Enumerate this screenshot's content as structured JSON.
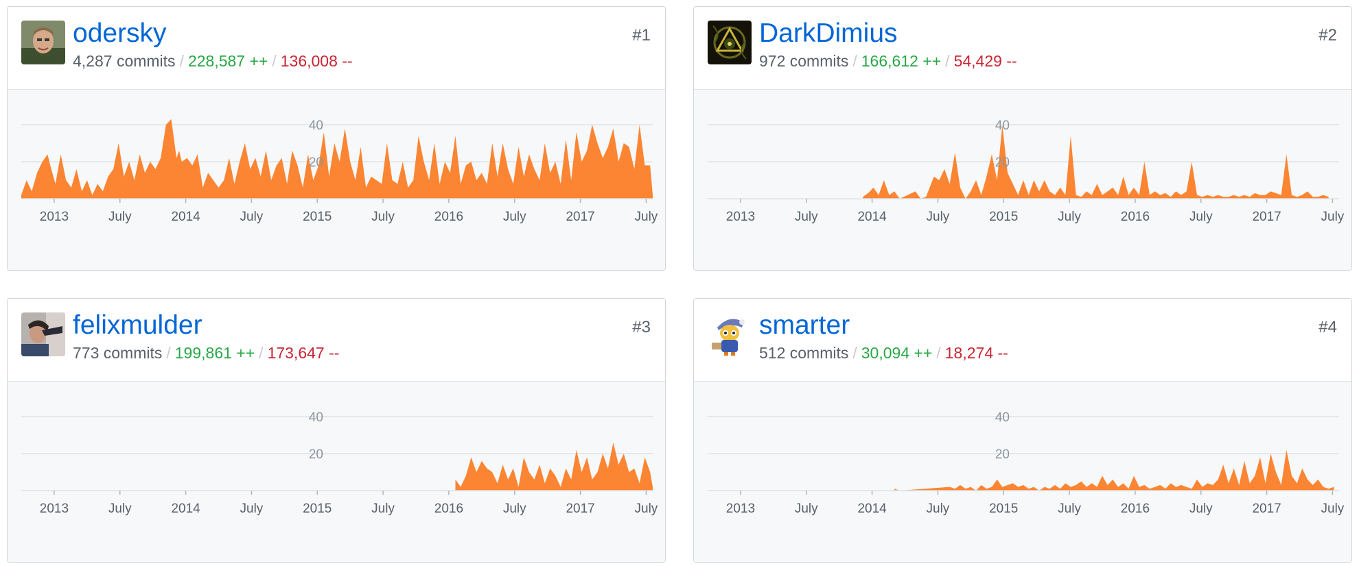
{
  "cards": [
    {
      "rank": "#1",
      "username": "odersky",
      "commits": "4,287 commits",
      "additions": "228,587 ++",
      "deletions": "136,008 --",
      "avatar_icon": "avatar-photo-odersky"
    },
    {
      "rank": "#2",
      "username": "DarkDimius",
      "commits": "972 commits",
      "additions": "166,612 ++",
      "deletions": "54,429 --",
      "avatar_icon": "avatar-fractal-darkdimius"
    },
    {
      "rank": "#3",
      "username": "felixmulder",
      "commits": "773 commits",
      "additions": "199,861 ++",
      "deletions": "173,647 --",
      "avatar_icon": "avatar-photo-felixmulder"
    },
    {
      "rank": "#4",
      "username": "smarter",
      "commits": "512 commits",
      "additions": "30,094 ++",
      "deletions": "18,274 --",
      "avatar_icon": "avatar-cartoon-smarter"
    }
  ],
  "colors": {
    "area": "#fb8532",
    "link": "#0366d6",
    "additions": "#28a745",
    "deletions": "#cb2431"
  },
  "chart_data": [
    {
      "type": "area",
      "x_unit": "week",
      "x_range": [
        "2012-10",
        "2017-07"
      ],
      "ylim": [
        0,
        44
      ],
      "yticks": [
        20,
        40
      ],
      "xticks": [
        {
          "x": 0.25,
          "label": "2013"
        },
        {
          "x": 0.75,
          "label": "July"
        },
        {
          "x": 1.25,
          "label": "2014"
        },
        {
          "x": 1.75,
          "label": "July"
        },
        {
          "x": 2.25,
          "label": "2015"
        },
        {
          "x": 2.75,
          "label": "July"
        },
        {
          "x": 3.25,
          "label": "2016"
        },
        {
          "x": 3.75,
          "label": "July"
        },
        {
          "x": 4.25,
          "label": "2017"
        },
        {
          "x": 4.75,
          "label": "July"
        }
      ],
      "grid": true,
      "series": [
        {
          "x": [
            0.0,
            0.04,
            0.08,
            0.12,
            0.16,
            0.2,
            0.22,
            0.26,
            0.3,
            0.34,
            0.38,
            0.42,
            0.46,
            0.5,
            0.54,
            0.58,
            0.62,
            0.66,
            0.7,
            0.74,
            0.78,
            0.82,
            0.86,
            0.9,
            0.94,
            0.98,
            1.02,
            1.06,
            1.1,
            1.14,
            1.18,
            1.2,
            1.22,
            1.26,
            1.3,
            1.34,
            1.38,
            1.42,
            1.46,
            1.5,
            1.54,
            1.58,
            1.62,
            1.66,
            1.7,
            1.74,
            1.78,
            1.82,
            1.86,
            1.9,
            1.94,
            1.98,
            2.02,
            2.06,
            2.1,
            2.14,
            2.18,
            2.22,
            2.26,
            2.3,
            2.34,
            2.38,
            2.42,
            2.46,
            2.5,
            2.54,
            2.58,
            2.62,
            2.66,
            2.7,
            2.74,
            2.78,
            2.82,
            2.86,
            2.9,
            2.94,
            2.98,
            3.02,
            3.06,
            3.1,
            3.14,
            3.18,
            3.22,
            3.26,
            3.3,
            3.34,
            3.38,
            3.42,
            3.46,
            3.5,
            3.54,
            3.58,
            3.62,
            3.66,
            3.7,
            3.74,
            3.78,
            3.82,
            3.86,
            3.9,
            3.94,
            3.98,
            4.02,
            4.06,
            4.1,
            4.14,
            4.18,
            4.22,
            4.26,
            4.3,
            4.34,
            4.38,
            4.42,
            4.46,
            4.5,
            4.54,
            4.58,
            4.62,
            4.66,
            4.7,
            4.74,
            4.78,
            4.8
          ],
          "y": [
            2,
            10,
            4,
            14,
            20,
            24,
            18,
            8,
            24,
            10,
            6,
            16,
            4,
            10,
            2,
            8,
            4,
            12,
            16,
            30,
            12,
            20,
            10,
            24,
            14,
            20,
            16,
            22,
            40,
            43,
            22,
            26,
            20,
            22,
            18,
            24,
            6,
            14,
            10,
            6,
            10,
            22,
            8,
            20,
            30,
            16,
            22,
            12,
            26,
            10,
            18,
            22,
            8,
            26,
            18,
            6,
            24,
            10,
            18,
            36,
            12,
            30,
            20,
            38,
            20,
            10,
            28,
            6,
            12,
            10,
            8,
            30,
            10,
            8,
            20,
            6,
            10,
            34,
            20,
            10,
            30,
            8,
            20,
            14,
            34,
            8,
            18,
            20,
            10,
            14,
            8,
            30,
            12,
            30,
            16,
            8,
            28,
            12,
            24,
            16,
            10,
            30,
            14,
            20,
            8,
            32,
            10,
            36,
            20,
            26,
            40,
            30,
            22,
            28,
            38,
            20,
            30,
            28,
            16,
            40,
            18,
            18,
            2
          ]
        }
      ]
    },
    {
      "type": "area",
      "x_unit": "week",
      "x_range": [
        "2012-10",
        "2017-07"
      ],
      "ylim": [
        0,
        44
      ],
      "yticks": [
        20,
        40
      ],
      "xticks": [
        {
          "x": 0.25,
          "label": "2013"
        },
        {
          "x": 0.75,
          "label": "July"
        },
        {
          "x": 1.25,
          "label": "2014"
        },
        {
          "x": 1.75,
          "label": "July"
        },
        {
          "x": 2.25,
          "label": "2015"
        },
        {
          "x": 2.75,
          "label": "July"
        },
        {
          "x": 3.25,
          "label": "2016"
        },
        {
          "x": 3.75,
          "label": "July"
        },
        {
          "x": 4.25,
          "label": "2017"
        },
        {
          "x": 4.75,
          "label": "July"
        }
      ],
      "grid": true,
      "series": [
        {
          "x": [
            1.18,
            1.22,
            1.26,
            1.3,
            1.34,
            1.38,
            1.42,
            1.46,
            1.58,
            1.62,
            1.66,
            1.72,
            1.76,
            1.8,
            1.84,
            1.88,
            1.92,
            1.96,
            2.0,
            2.04,
            2.08,
            2.12,
            2.16,
            2.2,
            2.24,
            2.28,
            2.32,
            2.36,
            2.4,
            2.44,
            2.48,
            2.52,
            2.56,
            2.6,
            2.64,
            2.68,
            2.72,
            2.76,
            2.8,
            2.84,
            2.88,
            2.92,
            2.96,
            3.0,
            3.04,
            3.08,
            3.12,
            3.16,
            3.2,
            3.24,
            3.28,
            3.32,
            3.36,
            3.4,
            3.44,
            3.48,
            3.52,
            3.56,
            3.6,
            3.64,
            3.68,
            3.72,
            3.76,
            3.8,
            3.84,
            3.88,
            3.92,
            3.96,
            4.0,
            4.04,
            4.08,
            4.12,
            4.16,
            4.2,
            4.24,
            4.28,
            4.32,
            4.36,
            4.4,
            4.44,
            4.48,
            4.52,
            4.56,
            4.6,
            4.64,
            4.68,
            4.72
          ],
          "y": [
            1,
            3,
            6,
            2,
            10,
            2,
            4,
            0,
            4,
            0,
            1,
            12,
            10,
            16,
            8,
            25,
            6,
            0,
            4,
            10,
            2,
            12,
            24,
            10,
            40,
            14,
            8,
            2,
            10,
            2,
            10,
            4,
            10,
            4,
            2,
            6,
            2,
            34,
            2,
            1,
            4,
            2,
            8,
            2,
            4,
            6,
            2,
            12,
            2,
            6,
            2,
            20,
            2,
            4,
            2,
            3,
            1,
            4,
            2,
            4,
            20,
            2,
            1,
            2,
            1,
            2,
            1,
            1,
            2,
            1,
            2,
            1,
            3,
            2,
            2,
            4,
            3,
            2,
            24,
            2,
            1,
            2,
            4,
            1,
            1,
            2,
            1
          ]
        }
      ]
    },
    {
      "type": "area",
      "x_unit": "week",
      "x_range": [
        "2012-10",
        "2017-07"
      ],
      "ylim": [
        0,
        44
      ],
      "yticks": [
        20,
        40
      ],
      "xticks": [
        {
          "x": 0.25,
          "label": "2013"
        },
        {
          "x": 0.75,
          "label": "July"
        },
        {
          "x": 1.25,
          "label": "2014"
        },
        {
          "x": 1.75,
          "label": "July"
        },
        {
          "x": 2.25,
          "label": "2015"
        },
        {
          "x": 2.75,
          "label": "July"
        },
        {
          "x": 3.25,
          "label": "2016"
        },
        {
          "x": 3.75,
          "label": "July"
        },
        {
          "x": 4.25,
          "label": "2017"
        },
        {
          "x": 4.75,
          "label": "July"
        }
      ],
      "grid": true,
      "series": [
        {
          "x": [
            3.3,
            3.34,
            3.38,
            3.42,
            3.46,
            3.5,
            3.54,
            3.58,
            3.62,
            3.66,
            3.7,
            3.74,
            3.78,
            3.82,
            3.86,
            3.9,
            3.94,
            3.98,
            4.02,
            4.06,
            4.1,
            4.14,
            4.18,
            4.22,
            4.26,
            4.3,
            4.34,
            4.38,
            4.42,
            4.46,
            4.5,
            4.54,
            4.58,
            4.62,
            4.66,
            4.7,
            4.74,
            4.78,
            4.8
          ],
          "y": [
            6,
            2,
            8,
            18,
            10,
            16,
            12,
            10,
            4,
            14,
            6,
            12,
            2,
            18,
            10,
            6,
            14,
            4,
            12,
            8,
            2,
            12,
            6,
            22,
            10,
            18,
            6,
            10,
            20,
            12,
            26,
            14,
            20,
            10,
            12,
            4,
            18,
            10,
            2
          ]
        }
      ]
    },
    {
      "type": "area",
      "x_unit": "week",
      "x_range": [
        "2012-10",
        "2017-07"
      ],
      "ylim": [
        0,
        44
      ],
      "yticks": [
        20,
        40
      ],
      "xticks": [
        {
          "x": 0.25,
          "label": "2013"
        },
        {
          "x": 0.75,
          "label": "July"
        },
        {
          "x": 1.25,
          "label": "2014"
        },
        {
          "x": 1.75,
          "label": "July"
        },
        {
          "x": 2.25,
          "label": "2015"
        },
        {
          "x": 2.75,
          "label": "July"
        },
        {
          "x": 3.25,
          "label": "2016"
        },
        {
          "x": 3.75,
          "label": "July"
        },
        {
          "x": 4.25,
          "label": "2017"
        },
        {
          "x": 4.75,
          "label": "July"
        }
      ],
      "grid": true,
      "series": [
        {
          "x": [
            1.42,
            1.46,
            1.84,
            1.88,
            1.92,
            1.96,
            2.0,
            2.04,
            2.08,
            2.12,
            2.16,
            2.2,
            2.24,
            2.28,
            2.32,
            2.36,
            2.4,
            2.44,
            2.48,
            2.52,
            2.56,
            2.6,
            2.64,
            2.68,
            2.72,
            2.76,
            2.8,
            2.84,
            2.88,
            2.92,
            2.96,
            3.0,
            3.04,
            3.08,
            3.12,
            3.16,
            3.2,
            3.24,
            3.28,
            3.32,
            3.36,
            3.4,
            3.44,
            3.48,
            3.52,
            3.56,
            3.6,
            3.64,
            3.68,
            3.72,
            3.76,
            3.8,
            3.84,
            3.88,
            3.92,
            3.96,
            4.0,
            4.04,
            4.08,
            4.12,
            4.16,
            4.2,
            4.24,
            4.28,
            4.32,
            4.36,
            4.4,
            4.44,
            4.48,
            4.52,
            4.56,
            4.6,
            4.64,
            4.68,
            4.72,
            4.76
          ],
          "y": [
            1,
            0,
            2,
            1,
            3,
            1,
            2,
            0,
            3,
            1,
            2,
            6,
            2,
            3,
            4,
            2,
            3,
            1,
            2,
            0,
            2,
            1,
            3,
            1,
            4,
            2,
            3,
            5,
            2,
            4,
            2,
            8,
            3,
            6,
            2,
            4,
            1,
            8,
            2,
            3,
            1,
            2,
            3,
            1,
            4,
            2,
            3,
            2,
            1,
            6,
            2,
            4,
            3,
            6,
            14,
            4,
            12,
            3,
            16,
            4,
            8,
            18,
            4,
            20,
            10,
            3,
            22,
            8,
            4,
            12,
            6,
            3,
            6,
            2,
            1,
            2
          ]
        }
      ]
    }
  ]
}
